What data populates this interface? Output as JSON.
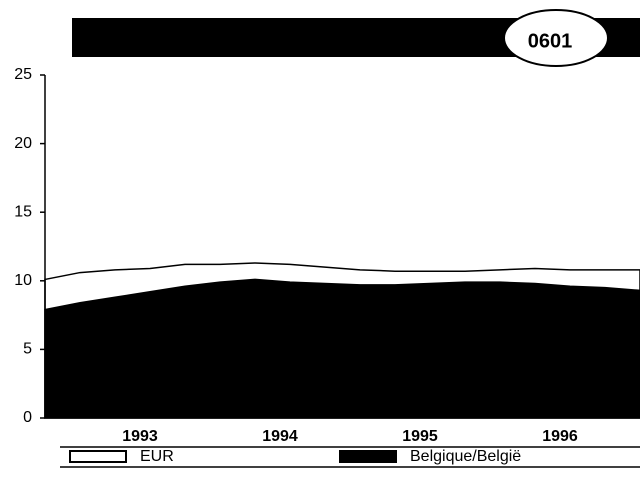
{
  "chart_data": {
    "type": "area",
    "badge": "0601",
    "categories": [
      null,
      null,
      null,
      "1993",
      null,
      null,
      null,
      "1994",
      null,
      null,
      null,
      "1995",
      null,
      null,
      null,
      "1996",
      null,
      null
    ],
    "series": [
      {
        "name": "EUR",
        "color": "#ffffff",
        "values": [
          10.1,
          10.6,
          10.8,
          10.9,
          11.2,
          11.2,
          11.3,
          11.2,
          11.0,
          10.8,
          10.7,
          10.7,
          10.7,
          10.8,
          10.9,
          10.8,
          10.8,
          10.8
        ]
      },
      {
        "name": "Belgique/België",
        "color": "#000000",
        "values": [
          7.9,
          8.4,
          8.8,
          9.2,
          9.6,
          9.9,
          10.1,
          9.9,
          9.8,
          9.7,
          9.7,
          9.8,
          9.9,
          9.9,
          9.8,
          9.6,
          9.5,
          9.3
        ]
      }
    ],
    "ylim": [
      0,
      25
    ],
    "yticks": [
      0,
      5,
      10,
      15,
      20,
      25
    ]
  }
}
